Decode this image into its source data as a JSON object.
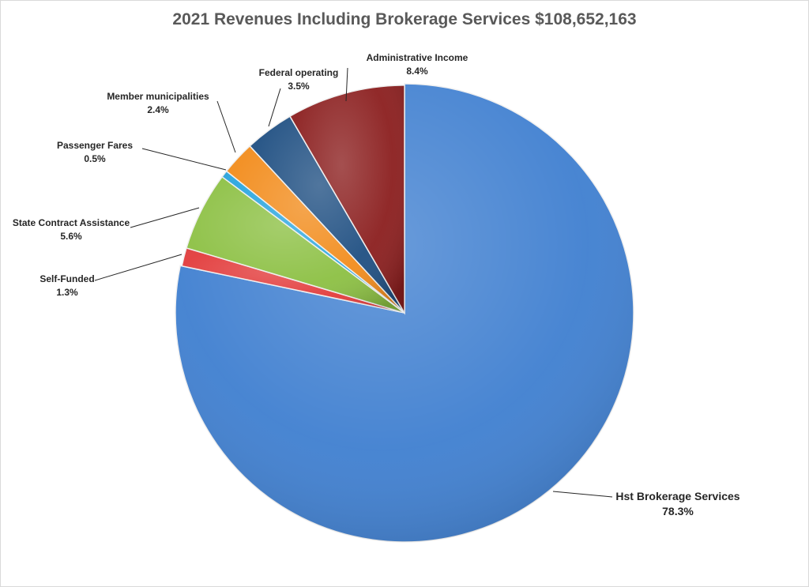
{
  "chart_data": {
    "type": "pie",
    "title": "2021 Revenues Including Brokerage Services $108,652,163",
    "series": [
      {
        "name": "Hst Brokerage Services",
        "value": 78.3,
        "label": "78.3%",
        "color": "#3f7fd0"
      },
      {
        "name": "Self-Funded",
        "value": 1.3,
        "label": "1.3%",
        "color": "#e23b3b"
      },
      {
        "name": "State Contract Assistance",
        "value": 5.6,
        "label": "5.6%",
        "color": "#8cc043"
      },
      {
        "name": "Passenger Fares",
        "value": 0.5,
        "label": "0.5%",
        "color": "#2aa6df"
      },
      {
        "name": "Member municipalities",
        "value": 2.4,
        "label": "2.4%",
        "color": "#f28c1c"
      },
      {
        "name": "Federal operating",
        "value": 3.5,
        "label": "3.5%",
        "color": "#1f4f82"
      },
      {
        "name": "Administrative Income",
        "value": 8.4,
        "label": "8.4%",
        "color": "#8b1e1e"
      }
    ],
    "start_at": "12 o'clock",
    "direction": "clockwise",
    "legend": "none",
    "data_labels": "outside with leader lines"
  }
}
